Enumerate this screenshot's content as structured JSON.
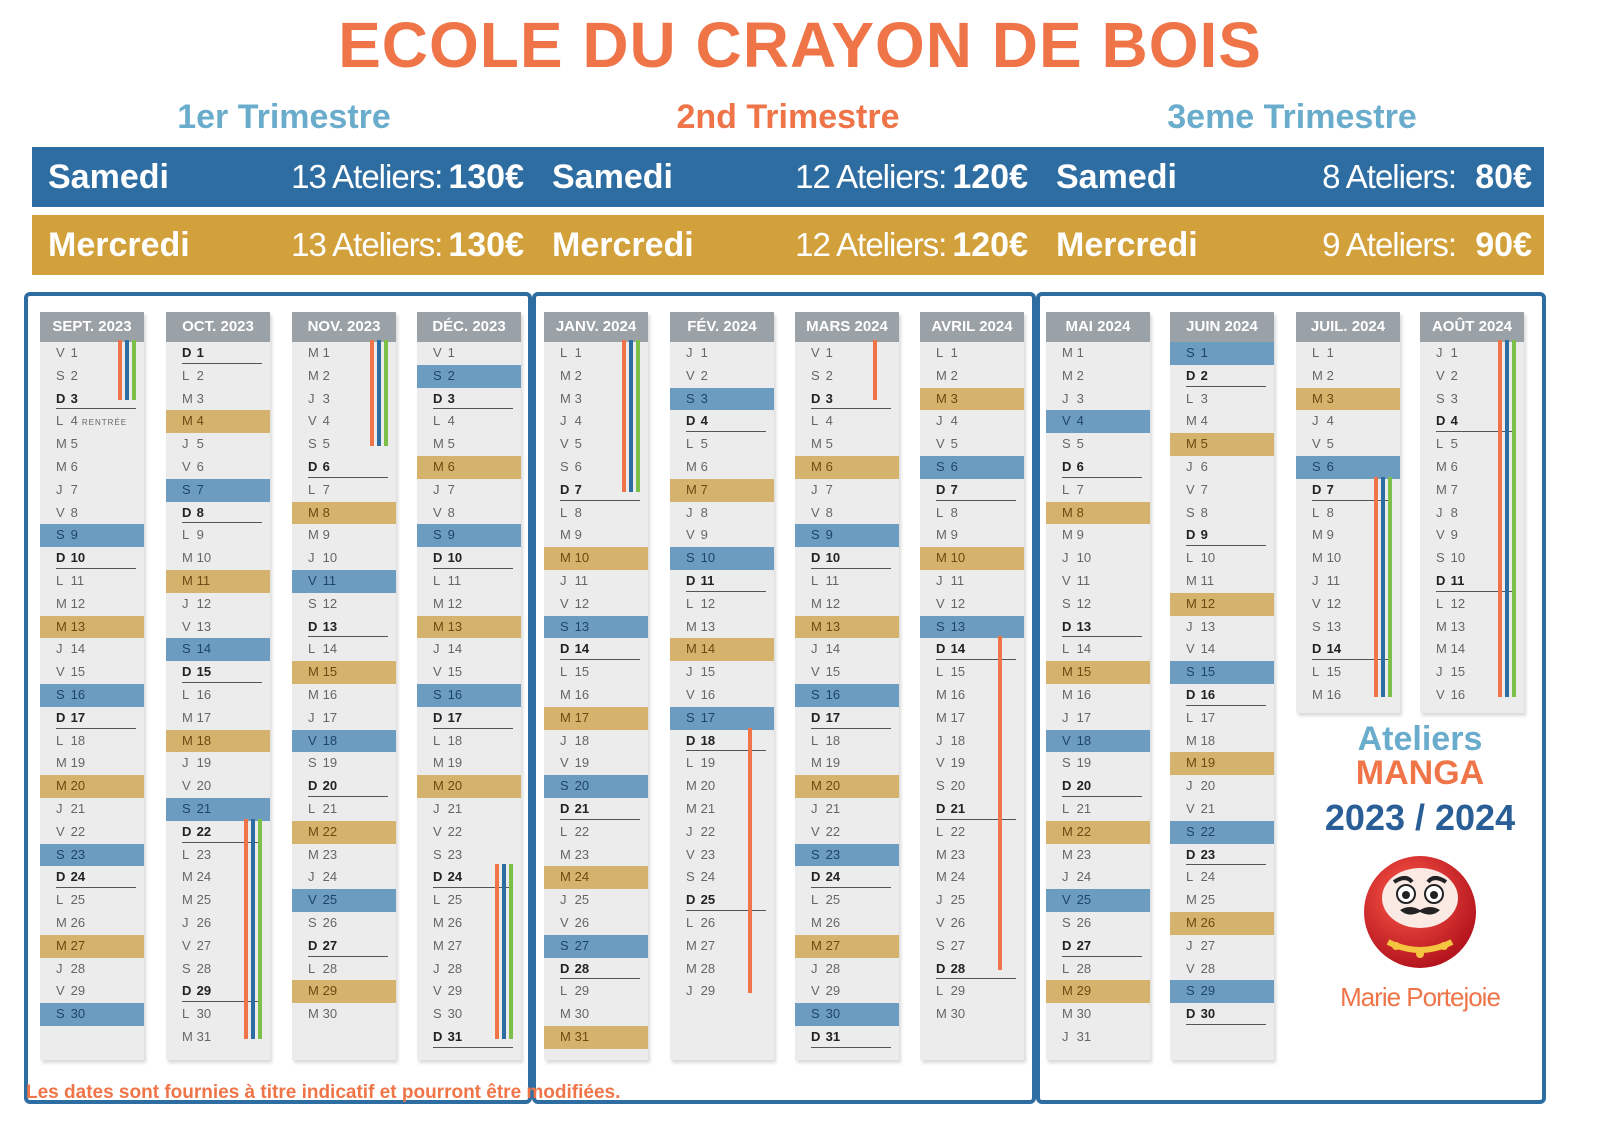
{
  "title": "ECOLE DU CRAYON DE BOIS",
  "trimesters": [
    {
      "name": "1er Trimestre",
      "samedi": {
        "day": "Samedi",
        "ateliers": "13 Ateliers:",
        "price": "130€"
      },
      "mercredi": {
        "day": "Mercredi",
        "ateliers": "13 Ateliers:",
        "price": "130€"
      }
    },
    {
      "name": "2nd Trimestre",
      "samedi": {
        "day": "Samedi",
        "ateliers": "12 Ateliers:",
        "price": "120€"
      },
      "mercredi": {
        "day": "Mercredi",
        "ateliers": "12 Ateliers:",
        "price": "120€"
      }
    },
    {
      "name": "3eme Trimestre",
      "samedi": {
        "day": "Samedi",
        "ateliers": "8 Ateliers:",
        "price": "80€"
      },
      "mercredi": {
        "day": "Mercredi",
        "ateliers": "9 Ateliers:",
        "price": "90€"
      }
    }
  ],
  "months": [
    {
      "label": "SEPT. 2023",
      "start": "V",
      "days": 30,
      "notes": {
        "4": "RENTRÉE"
      },
      "hl_s": [
        9,
        16,
        23,
        30
      ],
      "hl_m": [
        13,
        20,
        27
      ],
      "bars": [
        {
          "from": 1,
          "to": 3,
          "colors": [
            "#ef7549",
            "#2e6da2",
            "#7cc04a"
          ]
        }
      ]
    },
    {
      "label": "OCT. 2023",
      "start": "D",
      "days": 31,
      "hl_s": [
        7,
        14,
        21
      ],
      "hl_m": [
        4,
        11,
        18
      ],
      "bars": [
        {
          "from": 22,
          "to": 31,
          "colors": [
            "#ef7549",
            "#2e6da2",
            "#7cc04a"
          ]
        }
      ]
    },
    {
      "label": "NOV. 2023",
      "start": "M",
      "days": 30,
      "hl_s": [
        11,
        18,
        25
      ],
      "hl_m": [
        8,
        15,
        22,
        29
      ],
      "bars": [
        {
          "from": 1,
          "to": 5,
          "colors": [
            "#ef7549",
            "#2e6da2",
            "#7cc04a"
          ]
        }
      ]
    },
    {
      "label": "DÉC. 2023",
      "start": "V",
      "days": 31,
      "hl_s": [
        2,
        9,
        16
      ],
      "hl_m": [
        6,
        13,
        20
      ],
      "bars": [
        {
          "from": 24,
          "to": 31,
          "colors": [
            "#ef7549",
            "#2e6da2",
            "#7cc04a"
          ]
        }
      ]
    },
    {
      "label": "JANV. 2024",
      "start": "L",
      "days": 31,
      "hl_s": [
        13,
        20,
        27
      ],
      "hl_m": [
        10,
        17,
        24,
        31
      ],
      "bars": [
        {
          "from": 1,
          "to": 7,
          "colors": [
            "#ef7549",
            "#2e6da2",
            "#7cc04a"
          ]
        }
      ]
    },
    {
      "label": "FÉV. 2024",
      "start": "J",
      "days": 29,
      "hl_s": [
        3,
        10,
        17
      ],
      "hl_m": [
        7,
        14
      ],
      "bars": [
        {
          "from": 18,
          "to": 29,
          "colors": [
            "#ef7549"
          ]
        }
      ]
    },
    {
      "label": "MARS 2024",
      "start": "V",
      "days": 31,
      "hl_s": [
        9,
        16,
        23,
        30
      ],
      "hl_m": [
        6,
        13,
        20,
        27
      ],
      "bars": [
        {
          "from": 1,
          "to": 3,
          "colors": [
            "#ef7549"
          ]
        }
      ]
    },
    {
      "label": "AVRIL 2024",
      "start": "L",
      "days": 30,
      "hl_s": [
        6,
        13
      ],
      "hl_m": [
        3,
        10
      ],
      "bars": [
        {
          "from": 14,
          "to": 28,
          "colors": [
            "#ef7549"
          ]
        }
      ]
    },
    {
      "label": "MAI 2024",
      "start": "M",
      "days": 31,
      "hl_s": [
        4,
        18,
        25
      ],
      "hl_m": [
        8,
        15,
        22,
        29
      ],
      "bars": []
    },
    {
      "label": "JUIN 2024",
      "start": "S",
      "days": 30,
      "hl_s": [
        1,
        15,
        22,
        29
      ],
      "hl_m": [
        5,
        12,
        19,
        26
      ],
      "bars": []
    },
    {
      "label": "JUIL. 2024",
      "start": "L",
      "days": 16,
      "hl_s": [
        6
      ],
      "hl_m": [
        3
      ],
      "bars": [
        {
          "from": 7,
          "to": 16,
          "colors": [
            "#ef7549",
            "#2e6da2",
            "#7cc04a"
          ]
        }
      ]
    },
    {
      "label": "AOÛT 2024",
      "start": "J",
      "days": 16,
      "hl_s": [],
      "hl_m": [],
      "bars": [
        {
          "from": 1,
          "to": 16,
          "colors": [
            "#ef7549",
            "#2e6da2",
            "#7cc04a"
          ]
        }
      ]
    }
  ],
  "logo": {
    "line1": "Ateliers",
    "line2": "MANGA",
    "line3": "2023 / 2024",
    "author": "Marie Portejoie"
  },
  "footer": "Les dates sont fournies à titre indicatif et pourront être modifiées."
}
